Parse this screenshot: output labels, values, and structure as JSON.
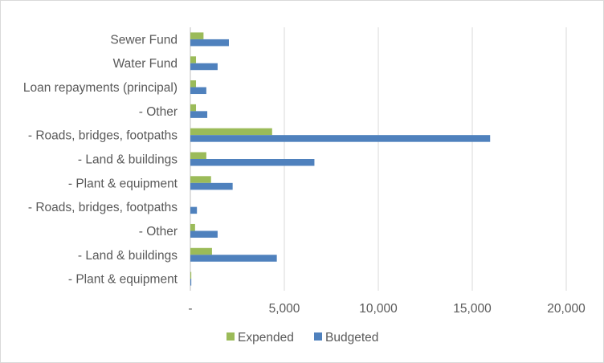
{
  "chart_data": {
    "type": "bar",
    "orientation": "horizontal",
    "title": "",
    "xlabel": "",
    "ylabel": "",
    "xlim": [
      0,
      20000
    ],
    "x_ticks": [
      0,
      5000,
      10000,
      15000,
      20000
    ],
    "x_tick_labels": [
      "-",
      "5,000",
      "10,000",
      "15,000",
      "20,000"
    ],
    "grid": true,
    "legend_position": "bottom",
    "categories": [
      "Sewer Fund",
      "Water Fund",
      "Loan repayments (principal)",
      "- Other",
      "- Roads, bridges, footpaths",
      "- Land & buildings",
      "- Plant & equipment",
      "- Roads, bridges, footpaths",
      "- Other",
      "- Land & buildings",
      "- Plant & equipment"
    ],
    "series": [
      {
        "name": "Expended",
        "color": "#9bbb59",
        "values": [
          700,
          300,
          300,
          300,
          4350,
          850,
          1100,
          0,
          250,
          1150,
          50
        ]
      },
      {
        "name": "Budgeted",
        "color": "#4f81bd",
        "values": [
          2050,
          1450,
          850,
          900,
          15950,
          6600,
          2250,
          350,
          1450,
          4600,
          50
        ]
      }
    ]
  }
}
